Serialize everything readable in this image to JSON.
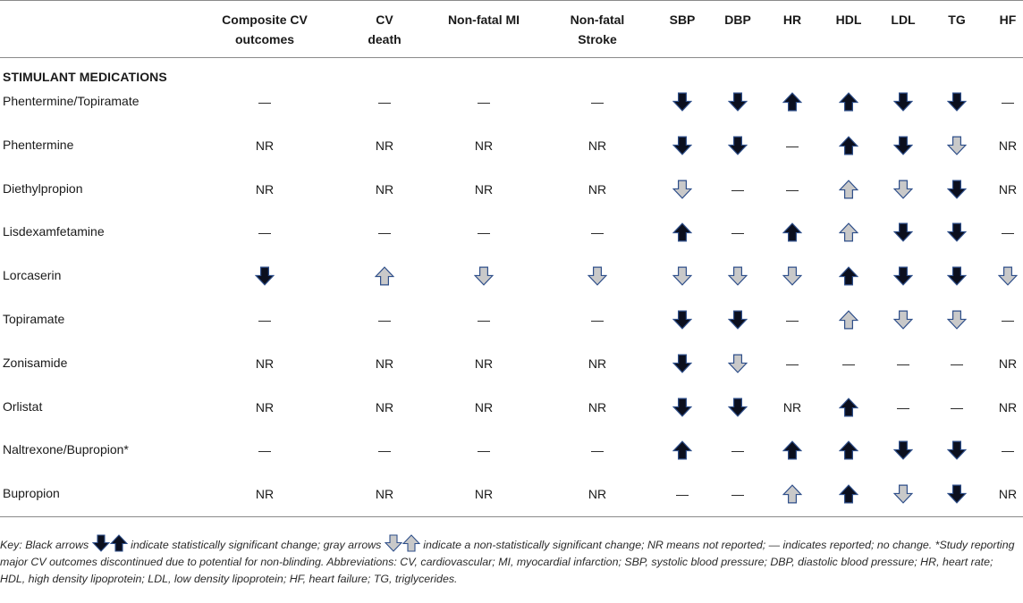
{
  "columns": [
    "Composite CV outcomes",
    "CV death",
    "Non-fatal MI",
    "Non-fatal Stroke",
    "SBP",
    "DBP",
    "HR",
    "HDL",
    "LDL",
    "TG",
    "HF"
  ],
  "header_lines": [
    [
      "Composite CV",
      "outcomes"
    ],
    [
      "CV",
      "death"
    ],
    [
      "Non-fatal MI",
      ""
    ],
    [
      "Non-fatal",
      "Stroke"
    ],
    [
      "SBP",
      ""
    ],
    [
      "DBP",
      ""
    ],
    [
      "HR",
      ""
    ],
    [
      "HDL",
      ""
    ],
    [
      "LDL",
      ""
    ],
    [
      "TG",
      ""
    ],
    [
      "HF",
      ""
    ]
  ],
  "section_title": "STIMULANT MEDICATIONS",
  "cell_legend": {
    "—": "reported; no change",
    "NR": "not reported",
    "down-black": "statistically significant decrease",
    "up-black": "statistically significant increase",
    "down-gray": "non-statistically significant decrease",
    "up-gray": "non-statistically significant increase"
  },
  "rows": [
    {
      "label": "Phentermine/Topiramate",
      "cells": [
        "—",
        "—",
        "—",
        "—",
        "down-black",
        "down-black",
        "up-black",
        "up-black",
        "down-black",
        "down-black",
        "—"
      ]
    },
    {
      "label": "Phentermine",
      "cells": [
        "NR",
        "NR",
        "NR",
        "NR",
        "down-black",
        "down-black",
        "—",
        "up-black",
        "down-black",
        "down-gray",
        "NR"
      ]
    },
    {
      "label": "Diethylpropion",
      "cells": [
        "NR",
        "NR",
        "NR",
        "NR",
        "down-gray",
        "—",
        "—",
        "up-gray",
        "down-gray",
        "down-black",
        "NR"
      ]
    },
    {
      "label": "Lisdexamfetamine",
      "cells": [
        "—",
        "—",
        "—",
        "—",
        "up-black",
        "—",
        "up-black",
        "up-gray",
        "down-black",
        "down-black",
        "—"
      ]
    },
    {
      "label": "Lorcaserin",
      "cells": [
        "down-black",
        "up-gray",
        "down-gray",
        "down-gray",
        "down-gray",
        "down-gray",
        "down-gray",
        "up-black",
        "down-black",
        "down-black",
        "down-gray"
      ]
    },
    {
      "label": "Topiramate",
      "cells": [
        "—",
        "—",
        "—",
        "—",
        "down-black",
        "down-black",
        "—",
        "up-gray",
        "down-gray",
        "down-gray",
        "—"
      ]
    },
    {
      "label": "Zonisamide",
      "cells": [
        "NR",
        "NR",
        "NR",
        "NR",
        "down-black",
        "down-gray",
        "—",
        "—",
        "—",
        "—",
        "NR"
      ]
    },
    {
      "label": "Orlistat",
      "cells": [
        "NR",
        "NR",
        "NR",
        "NR",
        "down-black",
        "down-black",
        "NR",
        "up-black",
        "—",
        "—",
        "NR"
      ]
    },
    {
      "label": "Naltrexone/Bupropion*",
      "cells": [
        "—",
        "—",
        "—",
        "—",
        "up-black",
        "—",
        "up-black",
        "up-black",
        "down-black",
        "down-black",
        "—"
      ]
    },
    {
      "label": "Bupropion",
      "cells": [
        "NR",
        "NR",
        "NR",
        "NR",
        "—",
        "—",
        "up-gray",
        "up-black",
        "down-gray",
        "down-black",
        "NR"
      ]
    }
  ],
  "key": {
    "prefix": "Key: Black arrows",
    "black_suffix": "indicate statistically significant change; gray arrows",
    "gray_suffix": "indicate a non-statistically significant change; NR means not reported; — indicates reported; no change. *Study reporting major CV outcomes discontinued due to potential for non-blinding. Abbreviations: CV, cardiovascular; MI, myocardial infarction; SBP, systolic blood pressure; DBP, diastolic blood pressure; HR, heart rate; HDL, high density lipoprotein; LDL, low density lipoprotein; HF, heart failure; TG, triglycerides."
  },
  "colors": {
    "arrow_black_fill": "#0b0f1e",
    "arrow_gray_fill": "#c9c9c9",
    "arrow_stroke": "#2f4f8a",
    "rule": "#8a8a8a"
  }
}
